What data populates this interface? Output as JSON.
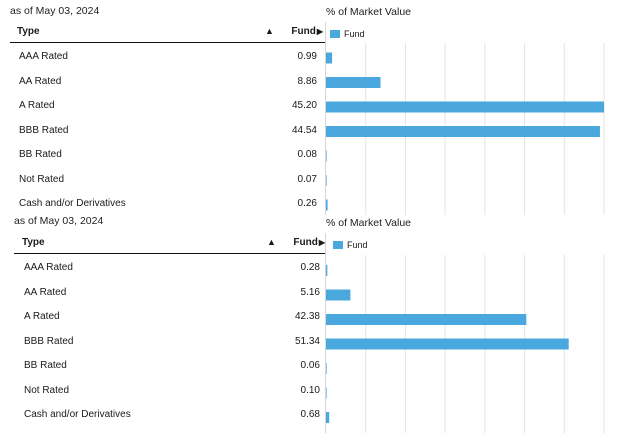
{
  "colors": {
    "bar": "#4aa8de",
    "grid": "#e3e3e3",
    "header_rule": "#111111"
  },
  "chart_data": [
    {
      "type": "bar",
      "orientation": "horizontal",
      "as_of": "as of May 03, 2024",
      "title": "% of Market Value",
      "legend": [
        "Fund"
      ],
      "columns": {
        "type": "Type",
        "fund": "Fund"
      },
      "categories": [
        "AAA Rated",
        "AA Rated",
        "A Rated",
        "BBB Rated",
        "BB Rated",
        "Not Rated",
        "Cash and/or Derivatives"
      ],
      "value_labels": [
        "0.99",
        "8.86",
        "45.20",
        "44.54",
        "0.08",
        "0.07",
        "0.26"
      ],
      "series": [
        {
          "name": "Fund",
          "values": [
            0.99,
            8.86,
            45.2,
            44.54,
            0.08,
            0.07,
            0.26
          ]
        }
      ],
      "xlim": [
        0,
        45.2
      ]
    },
    {
      "type": "bar",
      "orientation": "horizontal",
      "as_of": "as of May 03, 2024",
      "title": "% of Market Value",
      "legend": [
        "Fund"
      ],
      "columns": {
        "type": "Type",
        "fund": "Fund"
      },
      "categories": [
        "AAA Rated",
        "AA Rated",
        "A Rated",
        "BBB Rated",
        "BB Rated",
        "Not Rated",
        "Cash and/or Derivatives"
      ],
      "value_labels": [
        "0.28",
        "5.16",
        "42.38",
        "51.34",
        "0.06",
        "0.10",
        "0.68"
      ],
      "series": [
        {
          "name": "Fund",
          "values": [
            0.28,
            5.16,
            42.38,
            51.34,
            0.06,
            0.1,
            0.68
          ]
        }
      ],
      "xlim": [
        0,
        58.8
      ]
    }
  ]
}
